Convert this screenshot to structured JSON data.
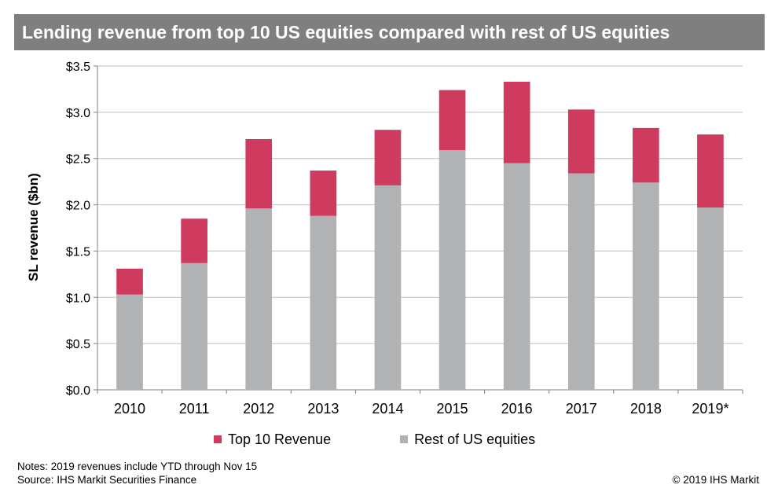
{
  "title": "Lending revenue from top 10 US equities compared with rest of US equities",
  "colors": {
    "top10": "#cf3b5e",
    "rest": "#b1b2b4",
    "title_bg": "#7f7f7f"
  },
  "chart_data": {
    "type": "bar",
    "stacked": true,
    "categories": [
      "2010",
      "2011",
      "2012",
      "2013",
      "2014",
      "2015",
      "2016",
      "2017",
      "2018",
      "2019*"
    ],
    "series": [
      {
        "name": "Rest of US equities",
        "values": [
          1.03,
          1.37,
          1.96,
          1.88,
          2.21,
          2.59,
          2.45,
          2.34,
          2.24,
          1.97
        ]
      },
      {
        "name": "Top 10 Revenue",
        "values": [
          0.28,
          0.48,
          0.75,
          0.49,
          0.6,
          0.65,
          0.88,
          0.69,
          0.59,
          0.79
        ]
      }
    ],
    "ylabel": "SL revenue ($bn)",
    "ylim": [
      0,
      3.5
    ],
    "yticks": [
      0,
      0.5,
      1.0,
      1.5,
      2.0,
      2.5,
      3.0,
      3.5
    ],
    "ytick_labels": [
      "$0.0",
      "$0.5",
      "$1.0",
      "$1.5",
      "$2.0",
      "$2.5",
      "$3.0",
      "$3.5"
    ],
    "grid": true,
    "legend_position": "bottom"
  },
  "legend": {
    "top10": "Top 10 Revenue",
    "rest": "Rest of US equities"
  },
  "notes": {
    "line1": "Notes: 2019 revenues include YTD through Nov 15",
    "line2": "Source: IHS Markit Securities Finance"
  },
  "copyright": "© 2019 IHS Markit"
}
